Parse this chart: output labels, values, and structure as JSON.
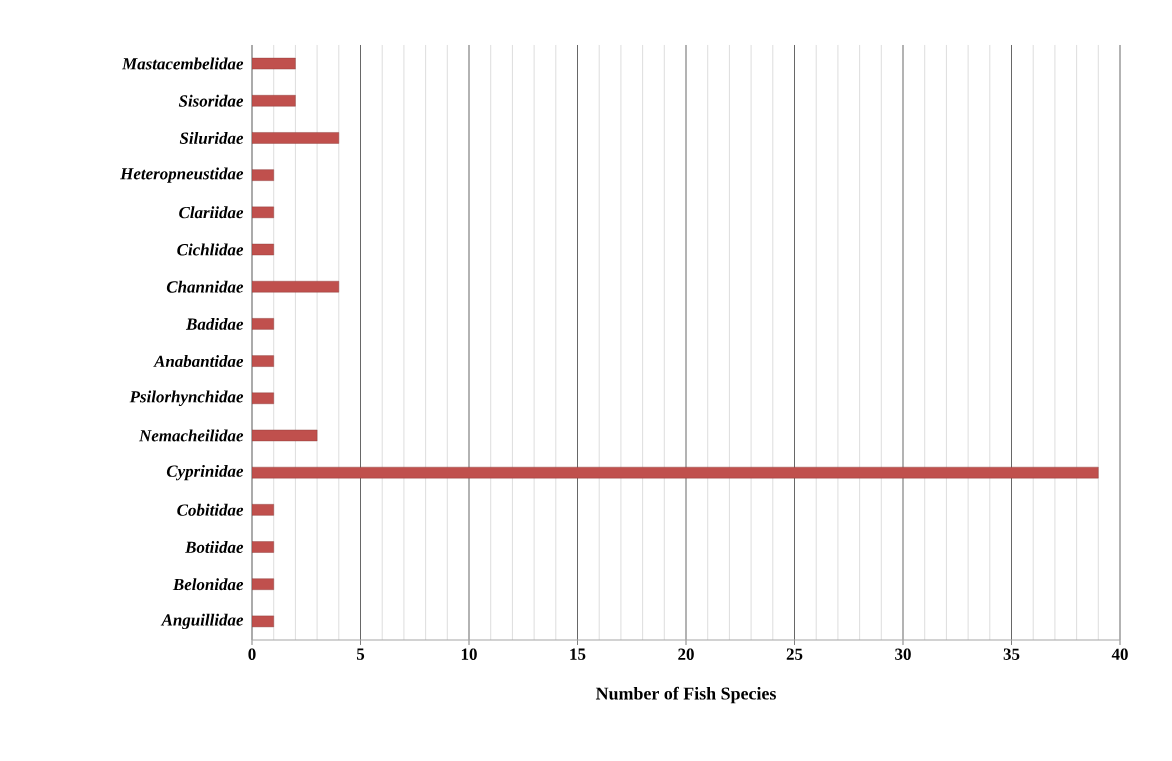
{
  "chart_data": {
    "type": "bar",
    "orientation": "horizontal",
    "categories": [
      "Mastacembelidae",
      "Sisoridae",
      "Siluridae",
      "Heteropneustidae",
      "Clariidae",
      "Cichlidae",
      "Channidae",
      "Badidae",
      "Anabantidae",
      "Psilorhynchidae",
      "Nemacheilidae",
      "Cyprinidae",
      "Cobitidae",
      "Botiidae",
      "Belonidae",
      "Anguillidae"
    ],
    "values": [
      2,
      2,
      4,
      1,
      1,
      1,
      4,
      1,
      1,
      1,
      3,
      39,
      1,
      1,
      1,
      1
    ],
    "color": "#c0504d",
    "xlabel": "Number of  Fish Species",
    "xlim": [
      0,
      40
    ],
    "xticks": [
      0,
      5,
      10,
      15,
      20,
      25,
      30,
      35,
      40
    ],
    "grid": "x"
  }
}
